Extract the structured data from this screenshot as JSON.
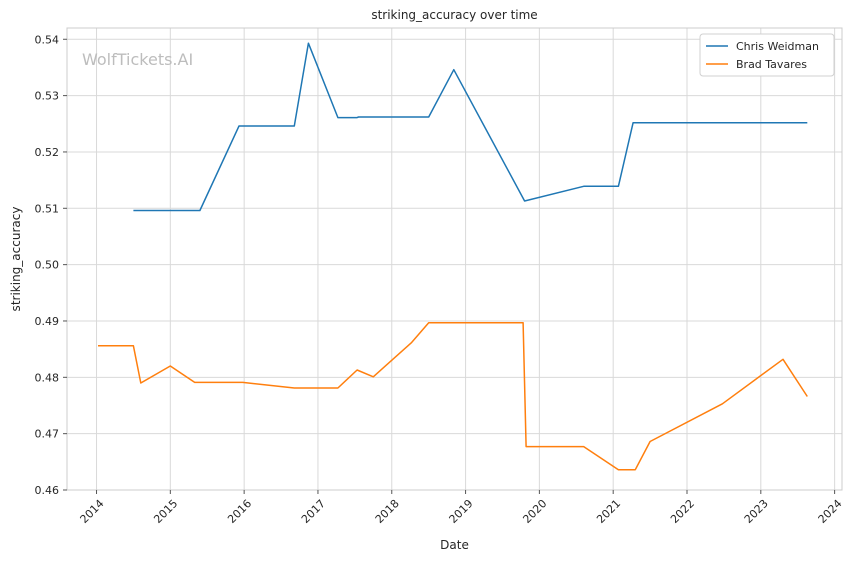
{
  "chart_data": {
    "type": "line",
    "title": "striking_accuracy over time",
    "xlabel": "Date",
    "ylabel": "striking_accuracy",
    "watermark": "WolfTickets.AI",
    "xlim": [
      2013.6,
      2024.1
    ],
    "ylim": [
      0.46,
      0.542
    ],
    "x_ticks": [
      2014,
      2015,
      2016,
      2017,
      2018,
      2019,
      2020,
      2021,
      2022,
      2023,
      2024
    ],
    "x_tick_labels": [
      "2014",
      "2015",
      "2016",
      "2017",
      "2018",
      "2019",
      "2020",
      "2021",
      "2022",
      "2023",
      "2024"
    ],
    "y_ticks": [
      0.46,
      0.47,
      0.48,
      0.49,
      0.5,
      0.51,
      0.52,
      0.53,
      0.54
    ],
    "y_tick_labels": [
      "0.46",
      "0.47",
      "0.48",
      "0.49",
      "0.50",
      "0.51",
      "0.52",
      "0.53",
      "0.54"
    ],
    "grid": true,
    "legend_position": "top-right",
    "series": [
      {
        "name": "Chris Weidman",
        "color": "#1f77b4",
        "x": [
          2014.5,
          2015.4,
          2015.93,
          2016.68,
          2016.87,
          2017.27,
          2017.53,
          2017.55,
          2018.5,
          2018.84,
          2019.8,
          2020.6,
          2021.07,
          2021.27,
          2023.63
        ],
        "y": [
          0.5096,
          0.5096,
          0.5246,
          0.5246,
          0.5393,
          0.5261,
          0.5261,
          0.5262,
          0.5262,
          0.5346,
          0.5113,
          0.5139,
          0.5139,
          0.5252,
          0.5252
        ]
      },
      {
        "name": "Brad Tavares",
        "color": "#ff7f0e",
        "x": [
          2014.02,
          2014.5,
          2014.6,
          2015.0,
          2015.33,
          2015.98,
          2016.68,
          2017.27,
          2017.53,
          2017.75,
          2018.27,
          2018.5,
          2019.78,
          2019.82,
          2020.6,
          2021.07,
          2021.3,
          2021.5,
          2022.48,
          2023.3,
          2023.63
        ],
        "y": [
          0.4856,
          0.4856,
          0.479,
          0.482,
          0.4791,
          0.4791,
          0.4781,
          0.4781,
          0.4813,
          0.4801,
          0.4862,
          0.4897,
          0.4897,
          0.4677,
          0.4677,
          0.4636,
          0.4636,
          0.4686,
          0.4753,
          0.4832,
          0.4766
        ]
      }
    ]
  }
}
